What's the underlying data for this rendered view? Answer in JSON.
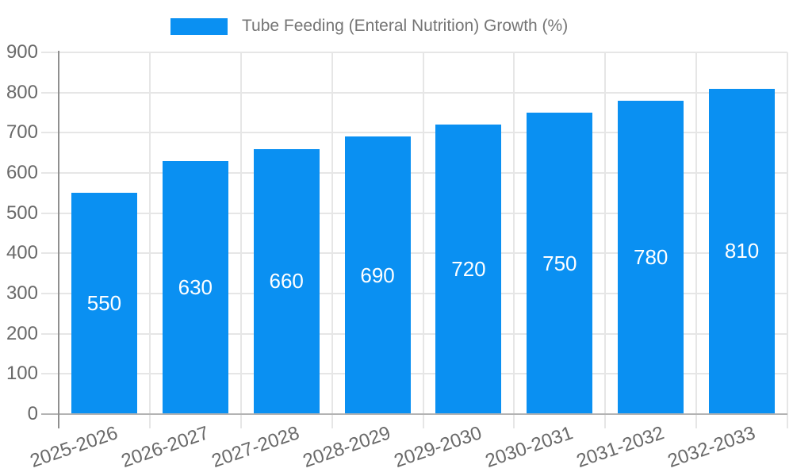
{
  "legend": {
    "title": "Tube Feeding (Enteral Nutrition) Growth (%)"
  },
  "chart_data": {
    "type": "bar",
    "title": "Tube Feeding (Enteral Nutrition) Growth (%)",
    "categories": [
      "2025-2026",
      "2026-2027",
      "2027-2028",
      "2028-2029",
      "2029-2030",
      "2030-2031",
      "2031-2032",
      "2032-2033"
    ],
    "values": [
      550,
      630,
      660,
      690,
      720,
      750,
      780,
      810
    ],
    "xlabel": "",
    "ylabel": "",
    "ylim": [
      0,
      900
    ],
    "ytick_step": 100,
    "grid": true,
    "legend_position": "top",
    "colors": {
      "bar": "#0a90f2",
      "bar_label": "#ffffff",
      "axis_text": "#696969",
      "legend_text": "#757575",
      "gridline": "#e6e6e6",
      "baseline": "#b3b3b3",
      "axis_line": "#8f8f8f"
    }
  }
}
